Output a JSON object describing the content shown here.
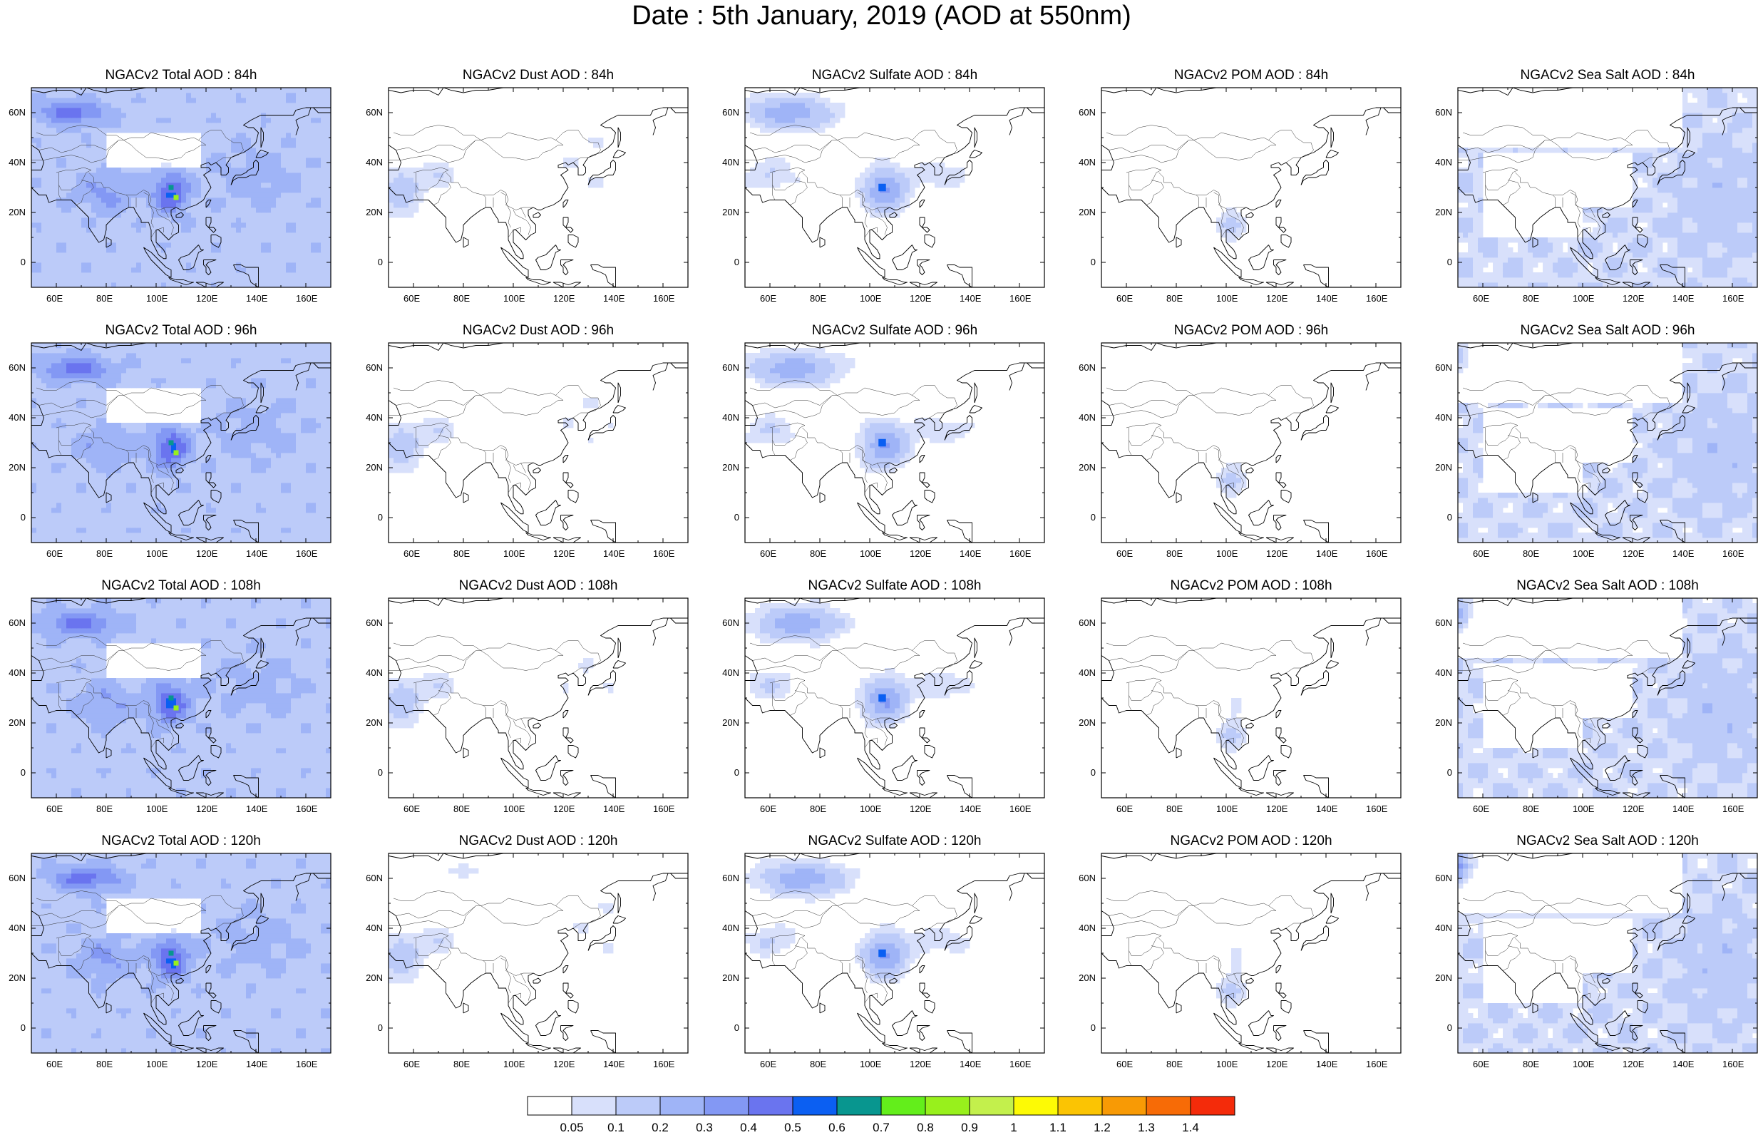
{
  "title": "Date : 5th January, 2019 (AOD at 550nm)",
  "map": {
    "lon_range": [
      50,
      170
    ],
    "lat_range": [
      -10,
      70
    ],
    "lon_ticks": [
      "60E",
      "80E",
      "100E",
      "120E",
      "140E",
      "160E"
    ],
    "lat_ticks": [
      "60N",
      "40N",
      "20N",
      "0"
    ]
  },
  "panels": [
    [
      {
        "title": "NGACv2 Total AOD : 84h",
        "variable": "total",
        "hour": 84
      },
      {
        "title": "NGACv2 Dust AOD : 84h",
        "variable": "dust",
        "hour": 84
      },
      {
        "title": "NGACv2 Sulfate AOD : 84h",
        "variable": "sulfate",
        "hour": 84
      },
      {
        "title": "NGACv2 POM AOD : 84h",
        "variable": "pom",
        "hour": 84
      },
      {
        "title": "NGACv2 Sea Salt AOD : 84h",
        "variable": "seasalt",
        "hour": 84
      }
    ],
    [
      {
        "title": "NGACv2 Total AOD : 96h",
        "variable": "total",
        "hour": 96
      },
      {
        "title": "NGACv2 Dust AOD : 96h",
        "variable": "dust",
        "hour": 96
      },
      {
        "title": "NGACv2 Sulfate AOD : 96h",
        "variable": "sulfate",
        "hour": 96
      },
      {
        "title": "NGACv2 POM AOD : 96h",
        "variable": "pom",
        "hour": 96
      },
      {
        "title": "NGACv2 Sea Salt AOD : 96h",
        "variable": "seasalt",
        "hour": 96
      }
    ],
    [
      {
        "title": "NGACv2 Total AOD : 108h",
        "variable": "total",
        "hour": 108
      },
      {
        "title": "NGACv2 Dust AOD : 108h",
        "variable": "dust",
        "hour": 108
      },
      {
        "title": "NGACv2 Sulfate AOD : 108h",
        "variable": "sulfate",
        "hour": 108
      },
      {
        "title": "NGACv2 POM AOD : 108h",
        "variable": "pom",
        "hour": 108
      },
      {
        "title": "NGACv2 Sea Salt AOD : 108h",
        "variable": "seasalt",
        "hour": 108
      }
    ],
    [
      {
        "title": "NGACv2 Total AOD : 120h",
        "variable": "total",
        "hour": 120
      },
      {
        "title": "NGACv2 Dust AOD : 120h",
        "variable": "dust",
        "hour": 120
      },
      {
        "title": "NGACv2 Sulfate AOD : 120h",
        "variable": "sulfate",
        "hour": 120
      },
      {
        "title": "NGACv2 POM AOD : 120h",
        "variable": "pom",
        "hour": 120
      },
      {
        "title": "NGACv2 Sea Salt  AOD : 120h",
        "variable": "seasalt",
        "hour": 120
      }
    ]
  ],
  "colorbar": {
    "levels": [
      "0.05",
      "0.1",
      "0.2",
      "0.3",
      "0.4",
      "0.5",
      "0.6",
      "0.7",
      "0.8",
      "0.9",
      "1",
      "1.1",
      "1.2",
      "1.3",
      "1.4"
    ],
    "colors": [
      "#ffffff",
      "#d8e0fb",
      "#bccbf9",
      "#9fb4f7",
      "#8398f4",
      "#6a74ef",
      "#0b5ff2",
      "#08968f",
      "#63ee1b",
      "#98f01c",
      "#c3f04c",
      "#fdfa05",
      "#fbc403",
      "#f89a05",
      "#f76b06",
      "#f42b0a"
    ]
  },
  "hotspots": {
    "total": [
      {
        "lon": 108,
        "lat": 26,
        "aod": 0.85,
        "r": 2
      },
      {
        "lon": 106,
        "lat": 30,
        "aod": 0.65,
        "r": 2
      }
    ],
    "sulfate": [
      {
        "lon": 105,
        "lat": 30,
        "aod": 0.5,
        "r": 3
      }
    ]
  }
}
